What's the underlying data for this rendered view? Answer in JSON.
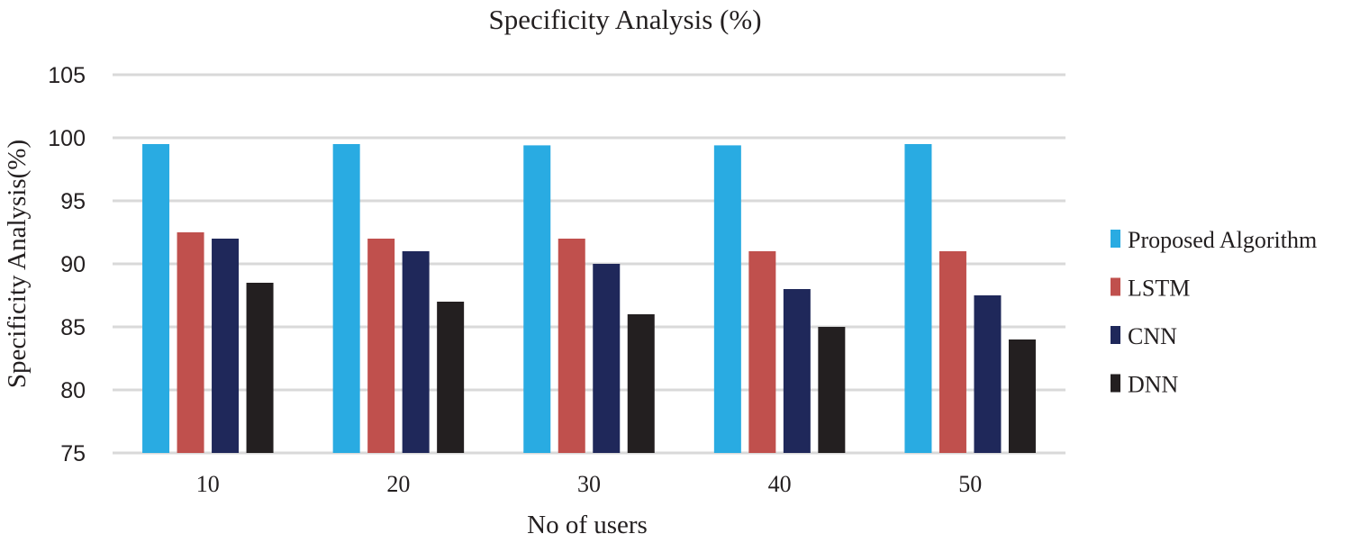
{
  "chart_data": {
    "type": "bar",
    "title": "Specificity  Analysis (%)",
    "xlabel": "No of users",
    "ylabel": "Specificity Analysis(%)",
    "categories": [
      "10",
      "20",
      "30",
      "40",
      "50"
    ],
    "ylim": [
      75,
      105
    ],
    "yticks": [
      "75",
      "80",
      "85",
      "90",
      "95",
      "100",
      "105"
    ],
    "grid": true,
    "legend_position": "right",
    "series": [
      {
        "name": "Proposed Algorithm",
        "color": "#29abe2",
        "values": [
          99.5,
          99.5,
          99.4,
          99.4,
          99.5
        ]
      },
      {
        "name": "LSTM",
        "color": "#c0504d",
        "values": [
          92.5,
          92,
          92,
          91,
          91
        ]
      },
      {
        "name": "CNN",
        "color": "#1f285a",
        "values": [
          92,
          91,
          90,
          88,
          87.5
        ]
      },
      {
        "name": "DNN",
        "color": "#231f20",
        "values": [
          88.5,
          87,
          86,
          85,
          84
        ]
      }
    ]
  }
}
